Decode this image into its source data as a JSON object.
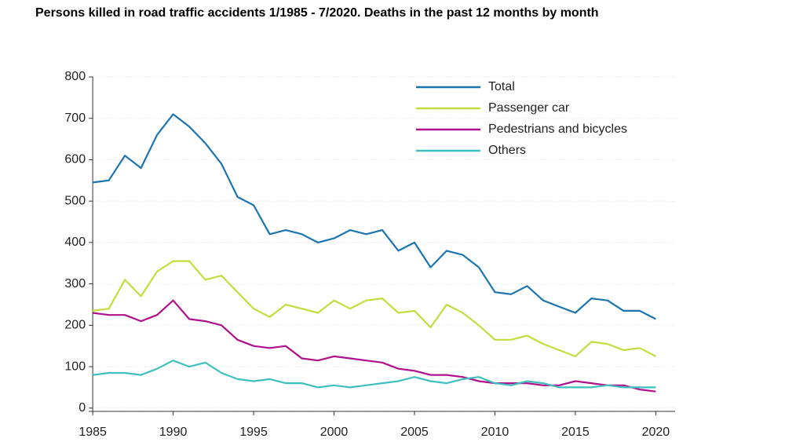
{
  "chart_data": {
    "type": "line",
    "title": "Persons killed in road traffic accidents 1/1985 - 7/2020. Deaths in the past 12 months by month",
    "x": [
      1985,
      1986,
      1987,
      1988,
      1989,
      1990,
      1991,
      1992,
      1993,
      1994,
      1995,
      1996,
      1997,
      1998,
      1999,
      2000,
      2001,
      2002,
      2003,
      2004,
      2005,
      2006,
      2007,
      2008,
      2009,
      2010,
      2011,
      2012,
      2013,
      2014,
      2015,
      2016,
      2017,
      2018,
      2019,
      2020
    ],
    "series": [
      {
        "name": "Total",
        "color": "#1a75b0",
        "values": [
          545,
          550,
          610,
          580,
          660,
          710,
          680,
          640,
          590,
          510,
          490,
          420,
          430,
          420,
          400,
          410,
          430,
          420,
          430,
          380,
          400,
          340,
          380,
          370,
          340,
          280,
          275,
          295,
          260,
          245,
          230,
          265,
          260,
          235,
          235,
          215
        ]
      },
      {
        "name": "Passenger car",
        "color": "#c4dc3c",
        "values": [
          235,
          240,
          310,
          270,
          330,
          355,
          355,
          310,
          320,
          280,
          240,
          220,
          250,
          240,
          230,
          260,
          240,
          260,
          265,
          230,
          235,
          195,
          250,
          230,
          200,
          165,
          165,
          175,
          155,
          140,
          125,
          160,
          155,
          140,
          145,
          125
        ]
      },
      {
        "name": "Pedestrians and bicycles",
        "color": "#b0108c",
        "values": [
          230,
          225,
          225,
          210,
          225,
          260,
          215,
          210,
          200,
          165,
          150,
          145,
          150,
          120,
          115,
          125,
          120,
          115,
          110,
          95,
          90,
          80,
          80,
          75,
          65,
          60,
          60,
          60,
          55,
          55,
          65,
          60,
          55,
          55,
          45,
          40
        ]
      },
      {
        "name": "Others",
        "color": "#3fbfbf",
        "values": [
          80,
          85,
          85,
          80,
          95,
          115,
          100,
          110,
          85,
          70,
          65,
          70,
          60,
          60,
          50,
          55,
          50,
          55,
          60,
          65,
          75,
          65,
          60,
          70,
          75,
          60,
          55,
          65,
          60,
          50,
          50,
          50,
          55,
          50,
          50,
          50
        ]
      }
    ],
    "xlim": [
      1984.75,
      2021.2
    ],
    "xticks": [
      1985,
      1990,
      1995,
      2000,
      2005,
      2010,
      2015,
      2020
    ],
    "ylim": [
      -8,
      800
    ],
    "yticks": [
      0,
      100,
      200,
      300,
      400,
      500,
      600,
      700,
      800
    ],
    "grid": true,
    "legend": "upper right"
  }
}
